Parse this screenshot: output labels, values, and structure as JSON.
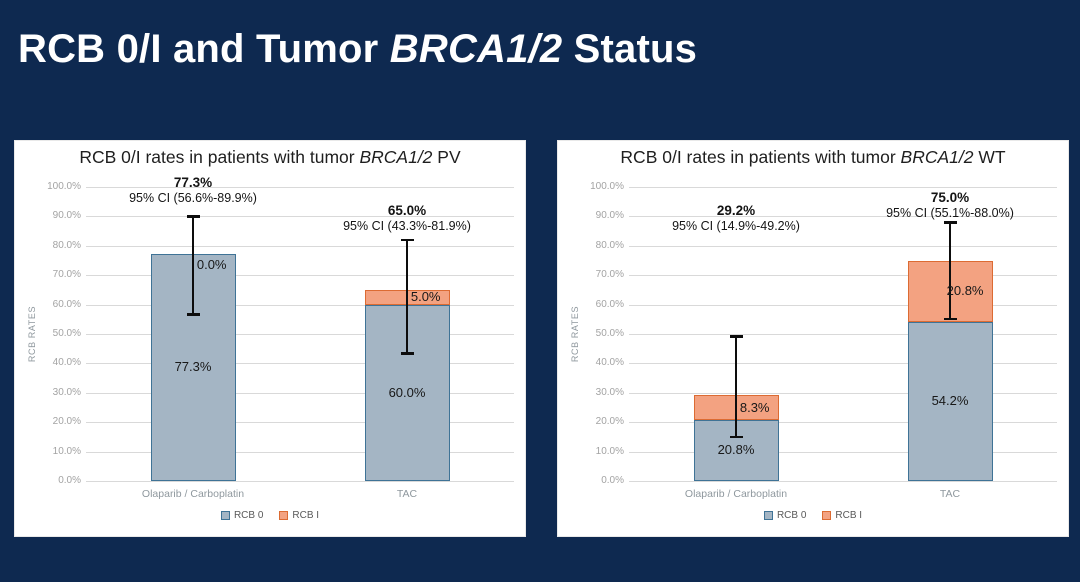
{
  "slide": {
    "background_color": "#0e2950",
    "title_parts": [
      {
        "text": "RCB 0/I and Tumor ",
        "italic": false
      },
      {
        "text": "BRCA1/2",
        "italic": true
      },
      {
        "text": " Status",
        "italic": false
      }
    ]
  },
  "colors": {
    "rcb0_fill": "#a4b5c4",
    "rcb0_border": "#3f7396",
    "rcb1_fill": "#f3a281",
    "rcb1_border": "#dc6b33",
    "error_bar": "#0d0d0d",
    "gridline": "#d9d9d9",
    "tick_label": "#a3a3a3",
    "category_label": "#8f989e",
    "legend_text": "#595959",
    "panel_background": "#ffffff",
    "chart_title": "#1f1f1f",
    "annotation": "#141414"
  },
  "chart_data": [
    {
      "type": "bar",
      "stacked": true,
      "title_parts": [
        {
          "text": "RCB 0/I rates in patients with tumor ",
          "italic": false
        },
        {
          "text": "BRCA1/2",
          "italic": true
        },
        {
          "text": " PV",
          "italic": false
        }
      ],
      "ylabel": "RCB RATES",
      "ylim": [
        0,
        100
      ],
      "ytick_step": 10,
      "yticks": [
        "0.0%",
        "10.0%",
        "20.0%",
        "30.0%",
        "40.0%",
        "50.0%",
        "60.0%",
        "70.0%",
        "80.0%",
        "90.0%",
        "100.0%"
      ],
      "grid": true,
      "legend_position": "bottom",
      "categories": [
        "Olaparib / Carboplatin",
        "TAC"
      ],
      "series": [
        {
          "name": "RCB 0",
          "values": [
            77.3,
            60.0
          ],
          "value_labels": [
            "77.3%",
            "60.0%"
          ]
        },
        {
          "name": "RCB I",
          "values": [
            0.0,
            5.0
          ],
          "value_labels": [
            "0.0%",
            "5.0%"
          ]
        }
      ],
      "totals": [
        {
          "value_label": "77.3%",
          "ci_label": "95% CI (56.6%-89.9%)",
          "label_y": 34
        },
        {
          "value_label": "65.0%",
          "ci_label": "95% CI (43.3%-81.9%)",
          "label_y": 62
        }
      ],
      "error_bars": [
        {
          "low": 56.6,
          "high": 89.9
        },
        {
          "low": 43.3,
          "high": 81.9
        }
      ]
    },
    {
      "type": "bar",
      "stacked": true,
      "title_parts": [
        {
          "text": "RCB 0/I rates in patients with tumor ",
          "italic": false
        },
        {
          "text": "BRCA1/2",
          "italic": true
        },
        {
          "text": " WT",
          "italic": false
        }
      ],
      "ylabel": "RCB RATES",
      "ylim": [
        0,
        100
      ],
      "ytick_step": 10,
      "yticks": [
        "0.0%",
        "10.0%",
        "20.0%",
        "30.0%",
        "40.0%",
        "50.0%",
        "60.0%",
        "70.0%",
        "80.0%",
        "90.0%",
        "100.0%"
      ],
      "grid": true,
      "legend_position": "bottom",
      "categories": [
        "Olaparib / Carboplatin",
        "TAC"
      ],
      "series": [
        {
          "name": "RCB 0",
          "values": [
            20.8,
            54.2
          ],
          "value_labels": [
            "20.8%",
            "54.2%"
          ]
        },
        {
          "name": "RCB I",
          "values": [
            8.3,
            20.8
          ],
          "value_labels": [
            "8.3%",
            "20.8%"
          ]
        }
      ],
      "totals": [
        {
          "value_label": "29.2%",
          "ci_label": "95% CI (14.9%-49.2%)",
          "label_y": 62
        },
        {
          "value_label": "75.0%",
          "ci_label": "95% CI (55.1%-88.0%)",
          "label_y": 49
        }
      ],
      "error_bars": [
        {
          "low": 14.9,
          "high": 49.2
        },
        {
          "low": 55.1,
          "high": 88.0
        }
      ]
    }
  ]
}
